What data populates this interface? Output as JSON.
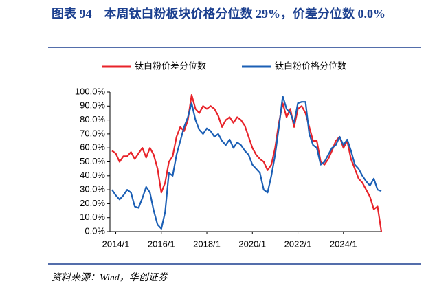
{
  "chart_data": {
    "type": "line",
    "title": "图表 94　本周钛白粉板块价格分位数 29%，价差分位数 0.0%",
    "source": "资料来源：Wind，华创证券",
    "legend": "top",
    "x": [
      "2013/11",
      "2014/1",
      "2014/3",
      "2014/5",
      "2014/7",
      "2014/9",
      "2014/11",
      "2015/1",
      "2015/3",
      "2015/5",
      "2015/7",
      "2015/9",
      "2015/11",
      "2016/1",
      "2016/3",
      "2016/5",
      "2016/7",
      "2016/9",
      "2016/11",
      "2017/1",
      "2017/3",
      "2017/5",
      "2017/7",
      "2017/9",
      "2017/11",
      "2018/1",
      "2018/3",
      "2018/5",
      "2018/7",
      "2018/9",
      "2018/11",
      "2019/1",
      "2019/3",
      "2019/5",
      "2019/7",
      "2019/9",
      "2019/11",
      "2020/1",
      "2020/3",
      "2020/5",
      "2020/7",
      "2020/9",
      "2020/11",
      "2021/1",
      "2021/3",
      "2021/5",
      "2021/7",
      "2021/9",
      "2021/11",
      "2022/1",
      "2022/3",
      "2022/5",
      "2022/7",
      "2022/9",
      "2022/11",
      "2023/1",
      "2023/3",
      "2023/5",
      "2023/7",
      "2023/9",
      "2023/11",
      "2024/1",
      "2024/3",
      "2024/5",
      "2024/7",
      "2024/9",
      "2024/11",
      "2025/1",
      "2025/3",
      "2025/5",
      "2025/7",
      "2025/9"
    ],
    "series": [
      {
        "name": "钛白粉价差分位数",
        "color": "#e8232a",
        "values": [
          58,
          56,
          50,
          54,
          54,
          57,
          52,
          56,
          60,
          53,
          60,
          55,
          45,
          28,
          35,
          50,
          54,
          68,
          75,
          72,
          80,
          98,
          88,
          85,
          90,
          88,
          90,
          88,
          83,
          75,
          80,
          82,
          78,
          82,
          80,
          76,
          68,
          60,
          55,
          52,
          50,
          44,
          48,
          60,
          78,
          92,
          82,
          88,
          75,
          88,
          90,
          85,
          75,
          65,
          65,
          50,
          48,
          52,
          58,
          65,
          68,
          60,
          65,
          52,
          45,
          38,
          35,
          30,
          25,
          16,
          18,
          0
        ]
      },
      {
        "name": "钛白粉价格分位数",
        "color": "#1b5fb5",
        "values": [
          30,
          26,
          23,
          26,
          30,
          28,
          18,
          17,
          24,
          32,
          28,
          15,
          5,
          2,
          14,
          42,
          40,
          55,
          65,
          75,
          82,
          92,
          80,
          73,
          70,
          74,
          72,
          68,
          70,
          65,
          62,
          66,
          60,
          64,
          62,
          58,
          55,
          48,
          45,
          42,
          30,
          28,
          40,
          55,
          75,
          97,
          88,
          85,
          78,
          92,
          93,
          93,
          70,
          62,
          60,
          48,
          50,
          55,
          60,
          62,
          68,
          62,
          66,
          58,
          48,
          45,
          40,
          36,
          33,
          38,
          30,
          29
        ]
      }
    ],
    "xlim": [
      "2013/11",
      "2025/9"
    ],
    "xticks": [
      "2014/1",
      "2016/1",
      "2018/1",
      "2020/1",
      "2022/1",
      "2024/1"
    ],
    "ylim": [
      0,
      100
    ],
    "yticks": [
      {
        "value": 0,
        "label": "0.0%"
      },
      {
        "value": 10,
        "label": "10.0%"
      },
      {
        "value": 20,
        "label": "20.0%"
      },
      {
        "value": 30,
        "label": "30.0%"
      },
      {
        "value": 40,
        "label": "40.0%"
      },
      {
        "value": 50,
        "label": "50.0%"
      },
      {
        "value": 60,
        "label": "60.0%"
      },
      {
        "value": 70,
        "label": "70.0%"
      },
      {
        "value": 80,
        "label": "80.0%"
      },
      {
        "value": 90,
        "label": "90.0%"
      },
      {
        "value": 100,
        "label": "100.0%"
      }
    ]
  }
}
